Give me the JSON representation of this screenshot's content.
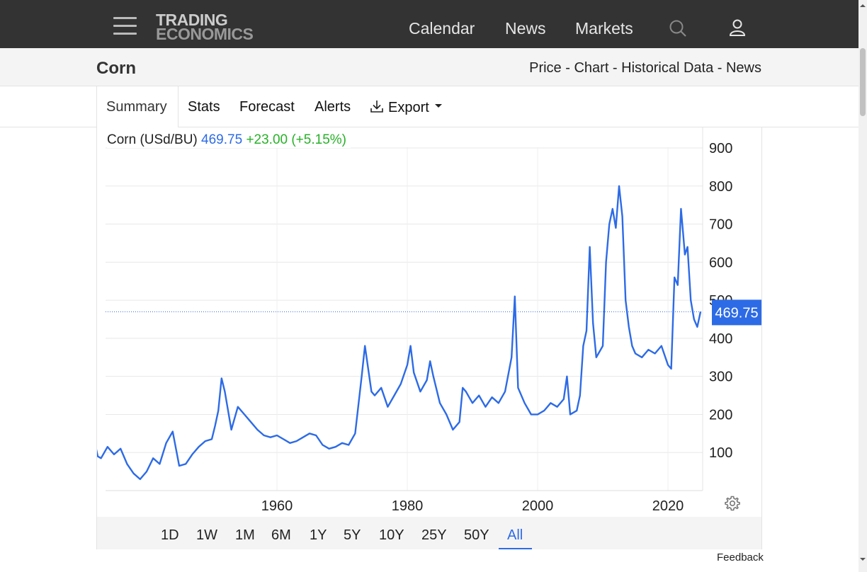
{
  "nav": {
    "logo_line1": "TRADING",
    "logo_line2": "ECONOMICS",
    "links": [
      "Calendar",
      "News",
      "Markets"
    ]
  },
  "header": {
    "title": "Corn",
    "links": [
      "Price",
      "Chart",
      "Historical Data",
      "News"
    ],
    "separator": " - "
  },
  "tabs": [
    "Summary",
    "Stats",
    "Forecast",
    "Alerts",
    "Export"
  ],
  "legend": {
    "name": "Corn (USd/BU)",
    "value": "469.75",
    "change": "+23.00 (+5.15%)"
  },
  "price_label": "469.75",
  "ranges": [
    "1D",
    "1W",
    "1M",
    "6M",
    "1Y",
    "5Y",
    "10Y",
    "25Y",
    "50Y",
    "All"
  ],
  "active_range": "All",
  "feedback": "Feedback",
  "colors": {
    "line": "#2d6be6",
    "positive": "#27b127",
    "nav_bg": "#333333"
  },
  "chart_data": {
    "type": "line",
    "title": "",
    "xlabel": "",
    "ylabel": "",
    "xlim": [
      1932,
      2025
    ],
    "ylim": [
      0,
      900
    ],
    "y_ticks": [
      100,
      200,
      300,
      400,
      500,
      600,
      700,
      800,
      900
    ],
    "x_ticks": [
      1960,
      1980,
      2000,
      2020
    ],
    "grid": true,
    "y_axis_side": "right",
    "last_value": 469.75,
    "x": [
      1932.0,
      1932.5,
      1933.0,
      1934.0,
      1935.0,
      1936.0,
      1937.0,
      1938.0,
      1939.0,
      1940.0,
      1941.0,
      1942.0,
      1943.0,
      1944.0,
      1945.0,
      1946.0,
      1947.0,
      1948.0,
      1949.0,
      1950.0,
      1950.5,
      1951.0,
      1951.5,
      1952.0,
      1953.0,
      1954.0,
      1955.0,
      1956.0,
      1957.0,
      1958.0,
      1959.0,
      1960.0,
      1961.0,
      1962.0,
      1963.0,
      1964.0,
      1965.0,
      1966.0,
      1967.0,
      1968.0,
      1969.0,
      1970.0,
      1971.0,
      1972.0,
      1973.0,
      1973.5,
      1974.0,
      1974.5,
      1975.0,
      1976.0,
      1977.0,
      1978.0,
      1979.0,
      1980.0,
      1980.5,
      1981.0,
      1982.0,
      1983.0,
      1983.5,
      1984.0,
      1985.0,
      1986.0,
      1987.0,
      1988.0,
      1988.5,
      1989.0,
      1990.0,
      1991.0,
      1992.0,
      1993.0,
      1994.0,
      1995.0,
      1996.0,
      1996.5,
      1997.0,
      1998.0,
      1999.0,
      2000.0,
      2001.0,
      2002.0,
      2003.0,
      2004.0,
      2004.5,
      2005.0,
      2006.0,
      2006.5,
      2007.0,
      2007.5,
      2008.0,
      2008.5,
      2009.0,
      2010.0,
      2010.5,
      2011.0,
      2011.5,
      2012.0,
      2012.5,
      2013.0,
      2013.5,
      2014.0,
      2014.5,
      2015.0,
      2016.0,
      2017.0,
      2018.0,
      2019.0,
      2020.0,
      2020.5,
      2021.0,
      2021.5,
      2022.0,
      2022.3,
      2022.6,
      2023.0,
      2023.5,
      2024.0,
      2024.5,
      2025.0
    ],
    "values": [
      130,
      90,
      85,
      115,
      95,
      110,
      70,
      45,
      30,
      50,
      85,
      70,
      125,
      155,
      65,
      70,
      95,
      115,
      130,
      135,
      170,
      210,
      295,
      260,
      160,
      220,
      200,
      180,
      160,
      145,
      140,
      145,
      135,
      125,
      130,
      140,
      150,
      145,
      120,
      110,
      115,
      125,
      120,
      150,
      300,
      380,
      320,
      260,
      250,
      270,
      220,
      250,
      280,
      330,
      380,
      310,
      260,
      290,
      340,
      300,
      230,
      200,
      160,
      180,
      270,
      260,
      230,
      250,
      220,
      245,
      230,
      260,
      350,
      510,
      270,
      230,
      200,
      200,
      210,
      230,
      220,
      240,
      300,
      200,
      210,
      250,
      380,
      420,
      640,
      440,
      350,
      380,
      600,
      700,
      740,
      690,
      800,
      720,
      500,
      430,
      380,
      360,
      350,
      370,
      360,
      380,
      330,
      320,
      560,
      540,
      740,
      680,
      620,
      640,
      500,
      450,
      430,
      469.75
    ]
  }
}
